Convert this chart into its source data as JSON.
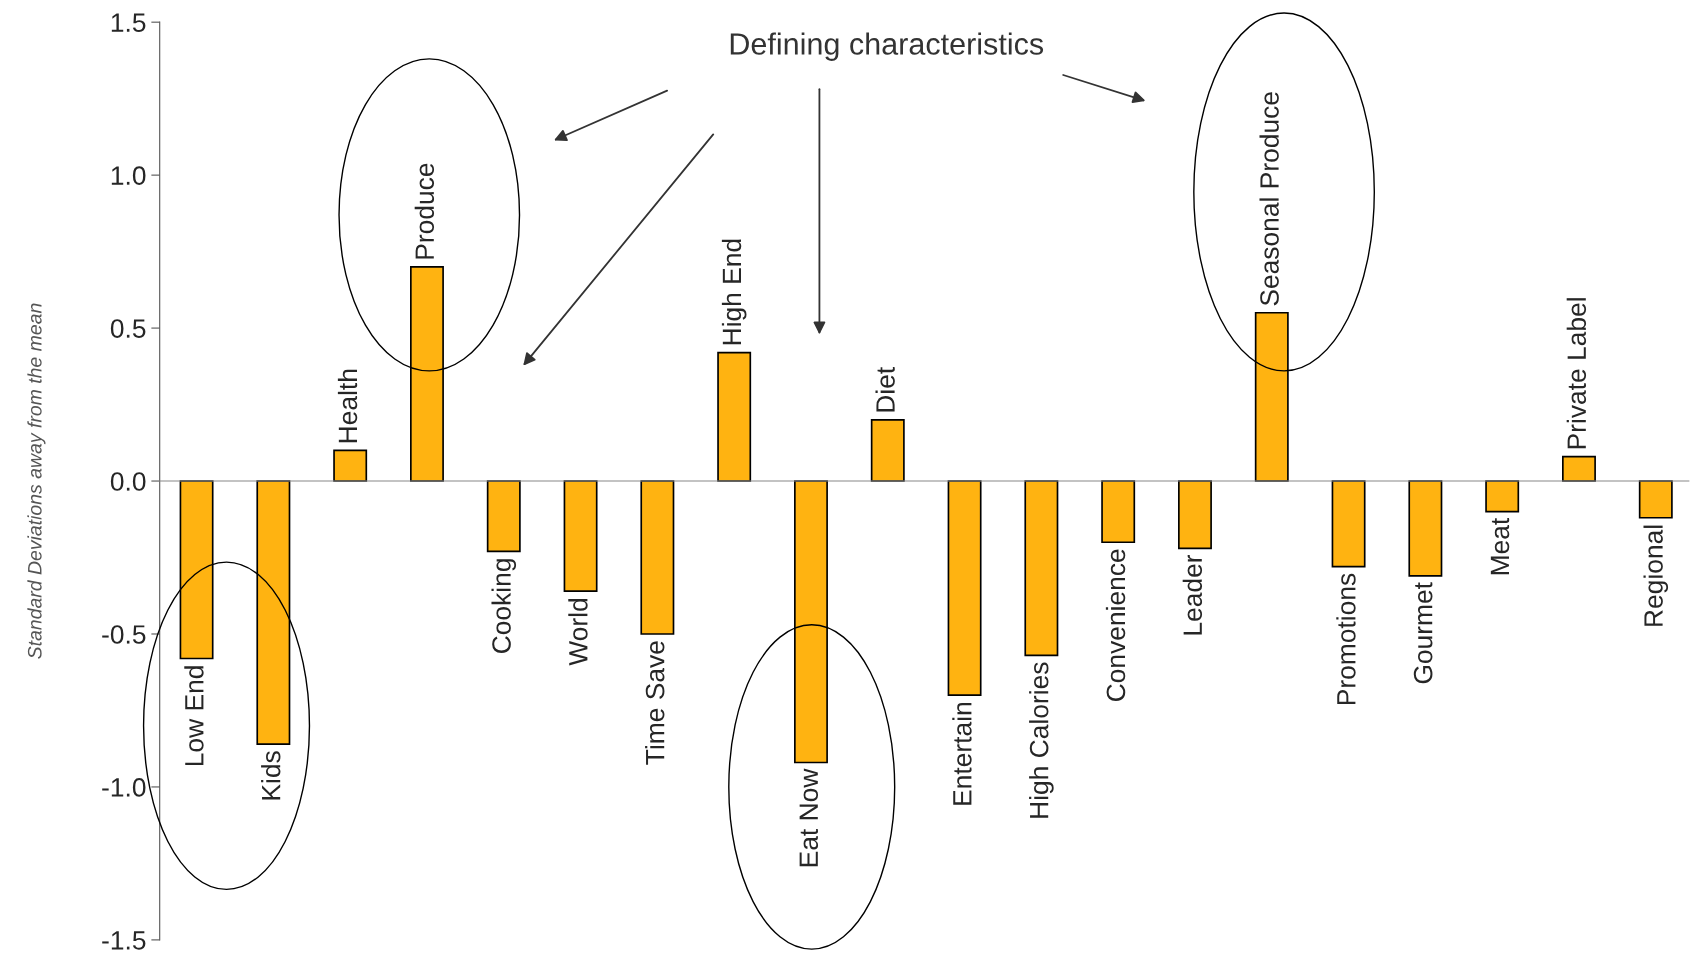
{
  "chart_data": {
    "type": "bar",
    "ylabel": "Standard Deviations away from the mean",
    "categories": [
      "Low End",
      "Kids",
      "Health",
      "Produce",
      "Cooking",
      "World",
      "Time Save",
      "High End",
      "Eat Now",
      "Diet",
      "Entertain",
      "High Calories",
      "Convenience",
      "Leader",
      "Seasonal Produce",
      "Promotions",
      "Gourmet",
      "Meat",
      "Private Label",
      "Regional"
    ],
    "values": [
      -0.58,
      -0.86,
      0.1,
      0.7,
      -0.23,
      -0.36,
      -0.5,
      0.42,
      -0.92,
      0.2,
      -0.7,
      -0.57,
      -0.2,
      -0.22,
      0.55,
      -0.28,
      -0.31,
      -0.1,
      0.08,
      -0.12
    ],
    "color": "#ffb311",
    "ylim": [
      -1.5,
      1.5
    ],
    "yticks": [
      {
        "value": -1.5,
        "label": "-1.5"
      },
      {
        "value": -1,
        "label": "-1.0"
      },
      {
        "value": -0.5,
        "label": "-0.5"
      },
      {
        "value": 0,
        "label": "0.0"
      },
      {
        "value": 0.5,
        "label": "0.5"
      },
      {
        "value": 1,
        "label": "1.0"
      },
      {
        "value": 1.5,
        "label": "1.5"
      }
    ],
    "grid": false,
    "annotations": [
      "Defining characteristics"
    ]
  }
}
